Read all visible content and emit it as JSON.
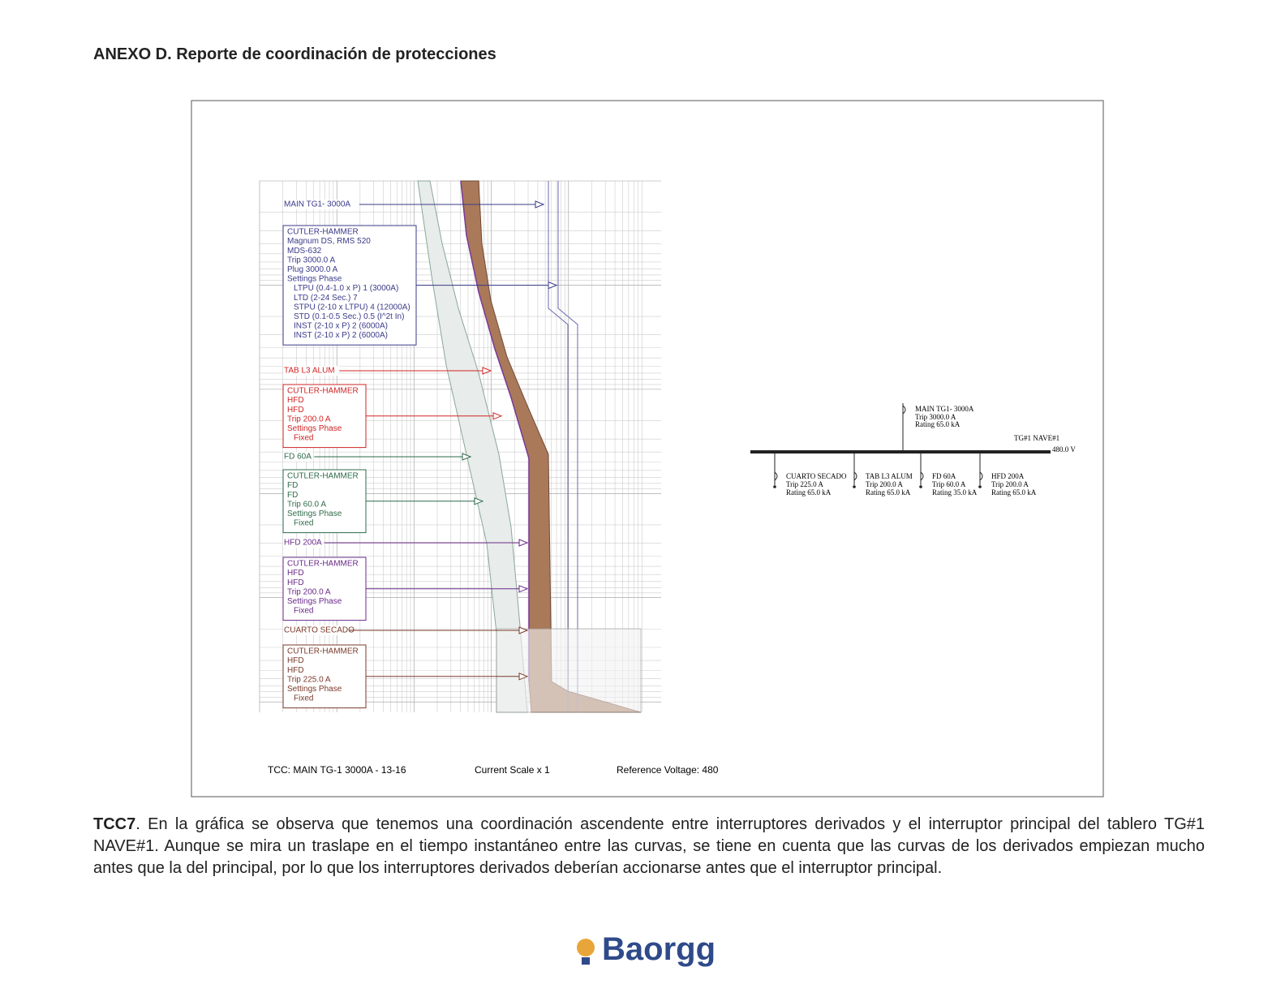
{
  "header": {
    "title": "ANEXO D. Reporte de coordinación de protecciones"
  },
  "tcc": {
    "devices": [
      {
        "label": "MAIN TG1- 3000A",
        "settings": [
          "CUTLER-HAMMER",
          "Magnum DS, RMS 520",
          "MDS-632",
          "Trip 3000.0 A",
          "Plug 3000.0 A",
          "Settings Phase",
          "LTPU (0.4-1.0 x P) 1 (3000A)",
          "LTD (2-24 Sec.) 7",
          "STPU (2-10 x LTPU) 4 (12000A)",
          "STD (0.1-0.5 Sec.) 0.5 (I^2t In)",
          "INST (2-10 x P) 2 (6000A)",
          "INST (2-10 x P) 2 (6000A)"
        ]
      },
      {
        "label": "TAB L3 ALUM",
        "settings": [
          "CUTLER-HAMMER",
          "HFD",
          "HFD",
          "Trip 200.0 A",
          "Settings Phase",
          "Fixed"
        ]
      },
      {
        "label": "FD 60A",
        "settings": [
          "CUTLER-HAMMER",
          "FD",
          "FD",
          "Trip 60.0 A",
          "Settings Phase",
          "Fixed"
        ]
      },
      {
        "label": "HFD 200A",
        "settings": [
          "CUTLER-HAMMER",
          "HFD",
          "HFD",
          "Trip 200.0 A",
          "Settings Phase",
          "Fixed"
        ]
      },
      {
        "label": "CUARTO SECADO",
        "settings": [
          "CUTLER-HAMMER",
          "HFD",
          "HFD",
          "Trip 225.0 A",
          "Settings Phase",
          "Fixed"
        ]
      }
    ],
    "footer": {
      "tcc": "TCC:  MAIN TG-1 3000A - 13-16",
      "scale": "Current Scale  x 1",
      "voltage": "Reference Voltage: 480"
    }
  },
  "one_line": {
    "main": {
      "name": "MAIN TG1- 3000A",
      "trip": "Trip 3000.0 A",
      "rating": "Rating 65.0 kA"
    },
    "bus": {
      "name": "TG#1 NAVE#1",
      "voltage": "480.0 V"
    },
    "feeders": [
      {
        "name": "CUARTO SECADO",
        "trip": "Trip 225.0 A",
        "rating": "Rating 65.0 kA"
      },
      {
        "name": "TAB L3 ALUM",
        "trip": "Trip 200.0 A",
        "rating": "Rating 65.0 kA"
      },
      {
        "name": "FD 60A",
        "trip": "Trip 60.0 A",
        "rating": "Rating 35.0 kA"
      },
      {
        "name": "HFD 200A",
        "trip": "Trip 200.0 A",
        "rating": "Rating 65.0 kA"
      }
    ]
  },
  "caption": {
    "lead": "TCC7",
    "text": ". En la gráfica se observa que tenemos una coordinación ascendente entre interruptores derivados y el interruptor principal del tablero TG#1 NAVE#1. Aunque se mira un traslape en el tiempo instantáneo entre las curvas, se tiene en cuenta que las curvas de los derivados empiezan mucho antes que la del principal, por lo que los interruptores derivados deberían accionarse antes que el interruptor principal."
  },
  "logo": "Baorgg"
}
